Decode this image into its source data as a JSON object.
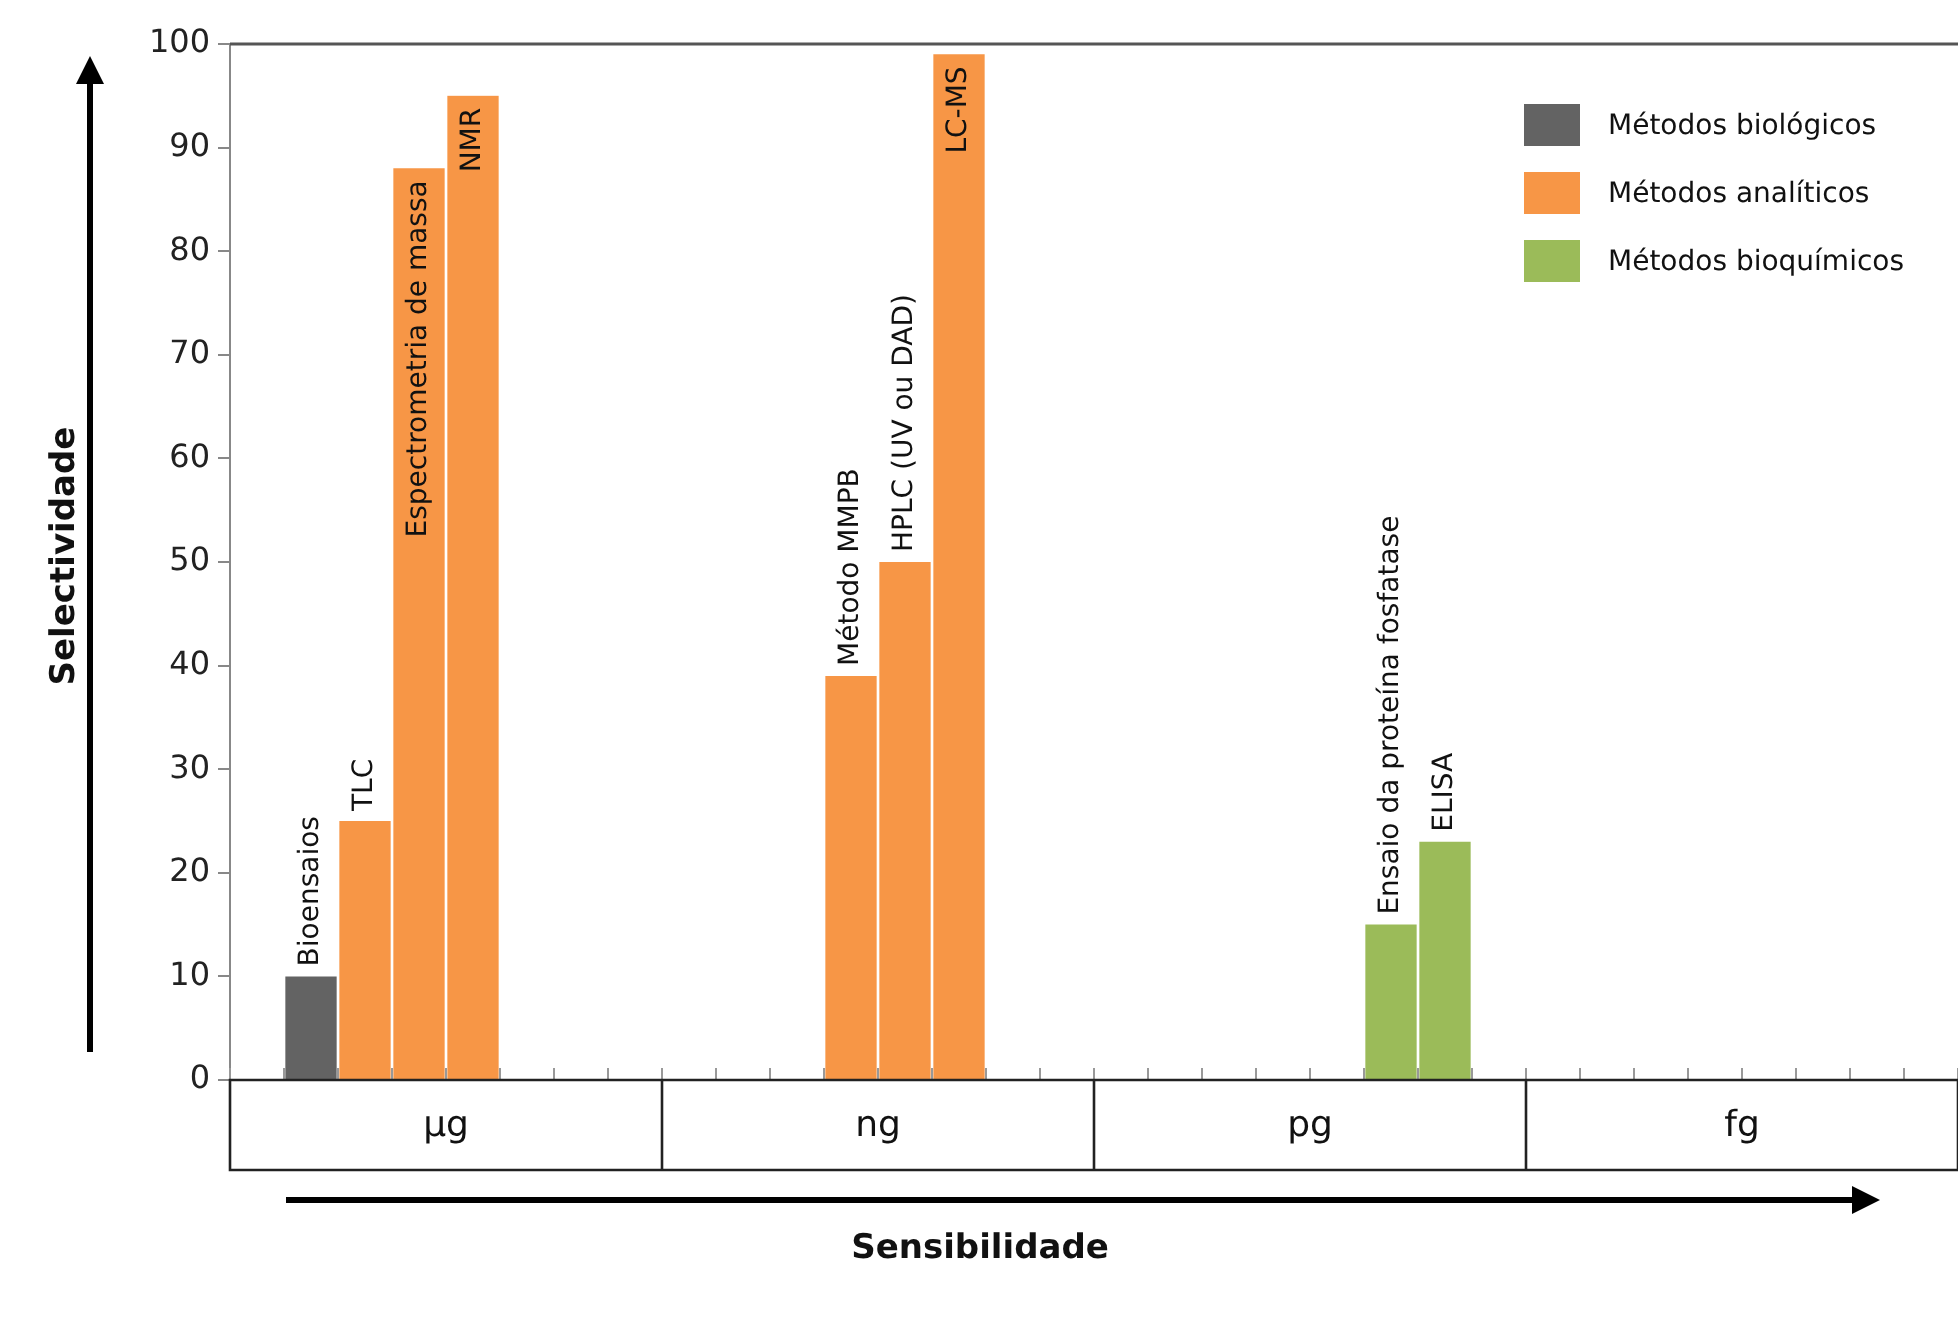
{
  "chart_data": {
    "type": "bar",
    "xlabel": "Sensibilidade",
    "ylabel": "Selectividade",
    "categories": [
      null,
      "Bioensaios",
      "TLC",
      "Espectrometria de massa",
      "NMR",
      null,
      null,
      null,
      null,
      null,
      null,
      "Método MMPB",
      "HPLC (UV ou DAD)",
      "LC-MS",
      null,
      null,
      null,
      null,
      null,
      null,
      null,
      "Ensaio da proteína fosfatase",
      "ELISA",
      null,
      null,
      null,
      null,
      null,
      null,
      null,
      null,
      null
    ],
    "series": [
      {
        "name": "Métodos biológicos",
        "color": "#636363",
        "values": [
          null,
          10,
          null,
          null,
          null,
          null,
          null,
          null,
          null,
          null,
          null,
          null,
          null,
          null,
          null,
          null,
          null,
          null,
          null,
          null,
          null,
          null,
          null,
          null,
          null,
          null,
          null,
          null,
          null,
          null,
          null,
          null
        ]
      },
      {
        "name": "Métodos analíticos",
        "color": "#f79646",
        "values": [
          null,
          null,
          25,
          88,
          95,
          null,
          null,
          null,
          null,
          null,
          null,
          39,
          50,
          99,
          null,
          null,
          null,
          null,
          null,
          null,
          null,
          null,
          null,
          null,
          null,
          null,
          null,
          null,
          null,
          null,
          null,
          null
        ]
      },
      {
        "name": "Métodos bioquímicos",
        "color": "#9bbb59",
        "values": [
          null,
          null,
          null,
          null,
          null,
          null,
          null,
          null,
          null,
          null,
          null,
          null,
          null,
          null,
          null,
          null,
          null,
          null,
          null,
          null,
          null,
          15,
          23,
          null,
          null,
          null,
          null,
          null,
          null,
          null,
          null,
          null
        ]
      }
    ],
    "annotations": [
      "µg",
      "ng",
      "pg",
      "fg"
    ],
    "ylim": [
      0,
      100
    ],
    "yticks": [
      0,
      10,
      20,
      30,
      40,
      50,
      60,
      70,
      80,
      90,
      100
    ],
    "grid": false,
    "legend": "top right"
  }
}
